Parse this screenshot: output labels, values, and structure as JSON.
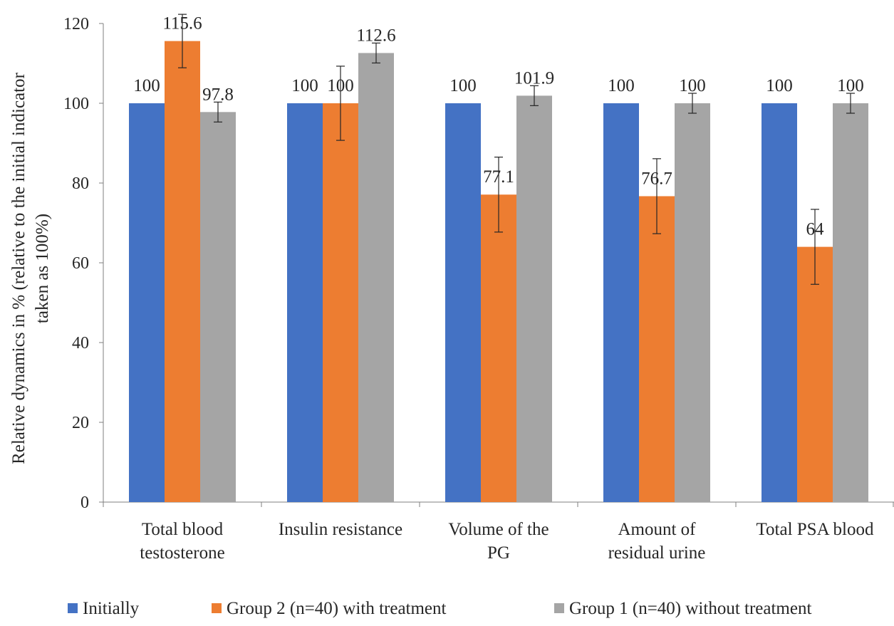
{
  "chart_data": {
    "type": "bar",
    "ylabel": "Relative dynamics in % (relative to the initial indicator taken as 100%)",
    "ylabel_lines": [
      "Relative dynamics in % (relative to the initial indicator",
      "taken as 100%)"
    ],
    "ylim": [
      0,
      120
    ],
    "yticks": [
      0,
      20,
      40,
      60,
      80,
      100,
      120
    ],
    "grid": false,
    "legend_position": "bottom",
    "categories": [
      [
        "Total blood",
        "testosterone"
      ],
      [
        "Insulin resistance"
      ],
      [
        "Volume of the",
        "PG"
      ],
      [
        "Amount of",
        "residual urine"
      ],
      [
        "Total PSA blood"
      ]
    ],
    "series": [
      {
        "name": "Initially",
        "color": "#4472C4",
        "values": [
          100,
          100,
          100,
          100,
          100
        ],
        "labels": [
          "100",
          "100",
          "100",
          "100",
          "100"
        ],
        "errors": [
          0,
          0,
          0,
          0,
          0
        ]
      },
      {
        "name": "Group 2 (n=40) with treatment",
        "color": "#ED7D31",
        "values": [
          115.6,
          100,
          77.1,
          76.7,
          64
        ],
        "labels": [
          "115.6",
          "100",
          "77.1",
          "76.7",
          "64"
        ],
        "errors": [
          6.7,
          9.3,
          9.4,
          9.4,
          9.4
        ]
      },
      {
        "name": "Group 1 (n=40) without treatment",
        "color": "#A5A5A5",
        "values": [
          97.8,
          112.6,
          101.9,
          100,
          100
        ],
        "labels": [
          "97.8",
          "112.6",
          "101.9",
          "100",
          "100"
        ],
        "errors": [
          2.5,
          2.5,
          2.5,
          2.5,
          2.5
        ]
      }
    ]
  }
}
